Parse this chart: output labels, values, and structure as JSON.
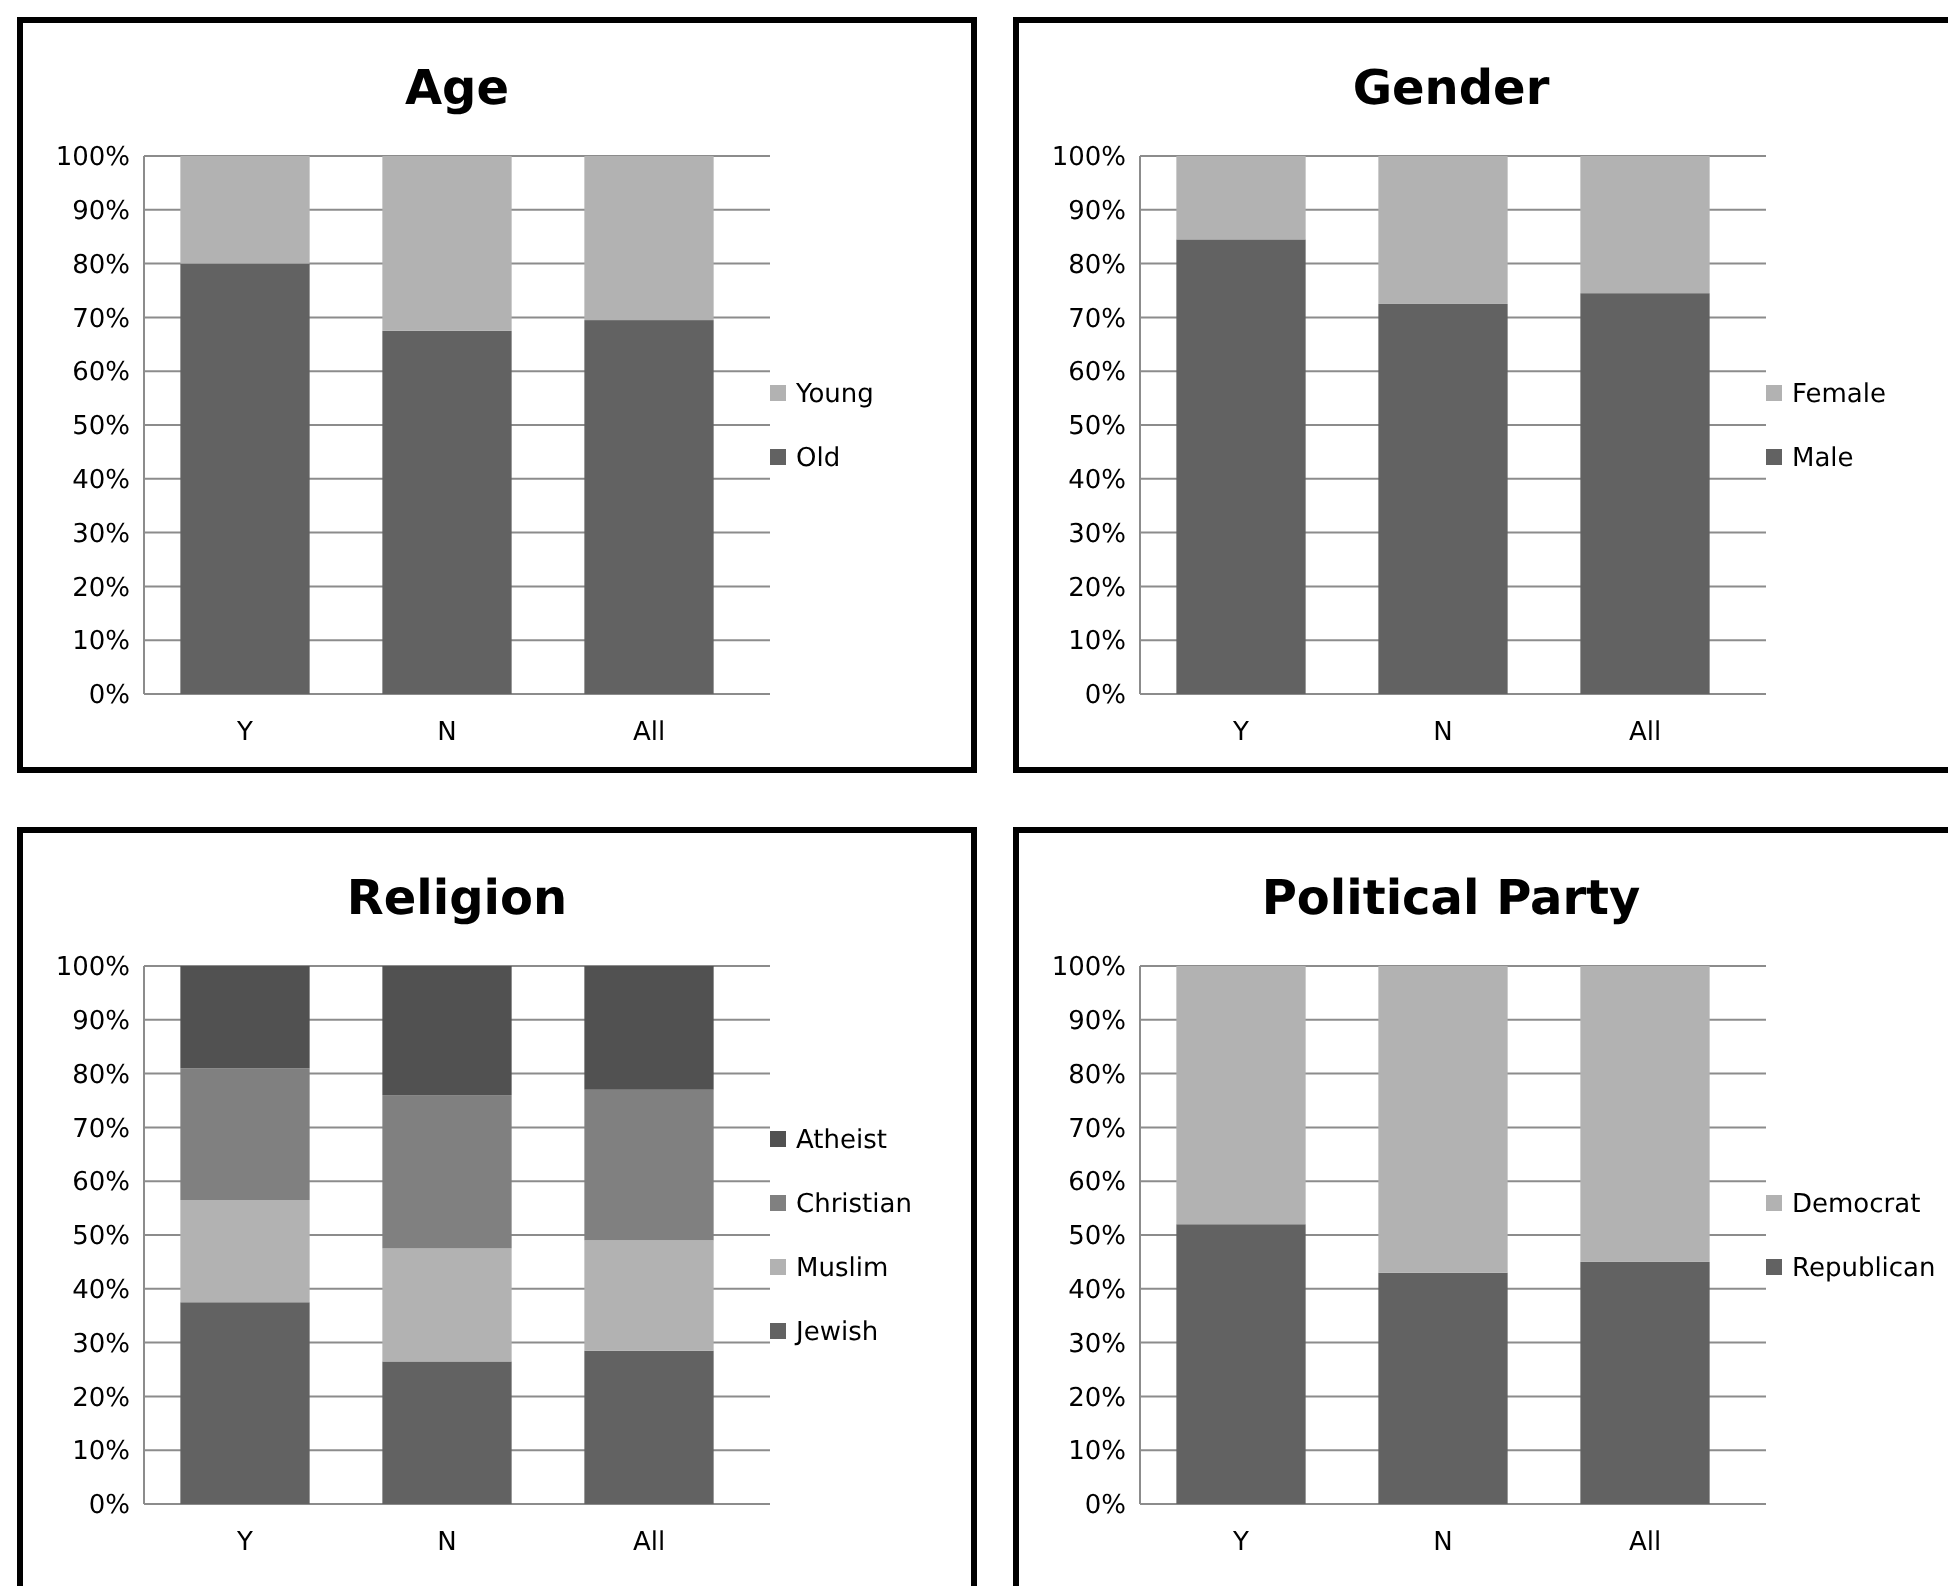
{
  "chart_data": [
    {
      "type": "bar",
      "title": "Age",
      "categories": [
        "Y",
        "N",
        "All"
      ],
      "stacked": true,
      "legend": "right",
      "grid": "y",
      "ylim": [
        0,
        100
      ],
      "yticks": [
        {
          "value": 0,
          "label": "0%"
        },
        {
          "value": 10,
          "label": "10%"
        },
        {
          "value": 20,
          "label": "20%"
        },
        {
          "value": 30,
          "label": "30%"
        },
        {
          "value": 40,
          "label": "40%"
        },
        {
          "value": 50,
          "label": "50%"
        },
        {
          "value": 60,
          "label": "60%"
        },
        {
          "value": 70,
          "label": "70%"
        },
        {
          "value": 80,
          "label": "80%"
        },
        {
          "value": 90,
          "label": "90%"
        },
        {
          "value": 100,
          "label": "100%"
        }
      ],
      "series": [
        {
          "name": "Old",
          "color": "#626262",
          "values": [
            80,
            67.5,
            69.5
          ]
        },
        {
          "name": "Young",
          "color": "#b2b2b2",
          "values": [
            20,
            32.5,
            30.5
          ]
        }
      ]
    },
    {
      "type": "bar",
      "title": "Gender",
      "categories": [
        "Y",
        "N",
        "All"
      ],
      "stacked": true,
      "legend": "right",
      "grid": "y",
      "ylim": [
        0,
        100
      ],
      "yticks": [
        {
          "value": 0,
          "label": "0%"
        },
        {
          "value": 10,
          "label": "10%"
        },
        {
          "value": 20,
          "label": "20%"
        },
        {
          "value": 30,
          "label": "30%"
        },
        {
          "value": 40,
          "label": "40%"
        },
        {
          "value": 50,
          "label": "50%"
        },
        {
          "value": 60,
          "label": "60%"
        },
        {
          "value": 70,
          "label": "70%"
        },
        {
          "value": 80,
          "label": "80%"
        },
        {
          "value": 90,
          "label": "90%"
        },
        {
          "value": 100,
          "label": "100%"
        }
      ],
      "series": [
        {
          "name": "Male",
          "color": "#626262",
          "values": [
            84.5,
            72.5,
            74.5
          ]
        },
        {
          "name": "Female",
          "color": "#b2b2b2",
          "values": [
            15.5,
            27.5,
            25.5
          ]
        }
      ]
    },
    {
      "type": "bar",
      "title": "Religion",
      "categories": [
        "Y",
        "N",
        "All"
      ],
      "stacked": true,
      "legend": "right",
      "grid": "y",
      "ylim": [
        0,
        100
      ],
      "yticks": [
        {
          "value": 0,
          "label": "0%"
        },
        {
          "value": 10,
          "label": "10%"
        },
        {
          "value": 20,
          "label": "20%"
        },
        {
          "value": 30,
          "label": "30%"
        },
        {
          "value": 40,
          "label": "40%"
        },
        {
          "value": 50,
          "label": "50%"
        },
        {
          "value": 60,
          "label": "60%"
        },
        {
          "value": 70,
          "label": "70%"
        },
        {
          "value": 80,
          "label": "80%"
        },
        {
          "value": 90,
          "label": "90%"
        },
        {
          "value": 100,
          "label": "100%"
        }
      ],
      "series": [
        {
          "name": "Jewish",
          "color": "#626262",
          "values": [
            37.5,
            26.5,
            28.5
          ]
        },
        {
          "name": "Muslim",
          "color": "#b2b2b2",
          "values": [
            19,
            21,
            20.5
          ]
        },
        {
          "name": "Christian",
          "color": "#808080",
          "values": [
            24.5,
            28.5,
            28
          ]
        },
        {
          "name": "Atheist",
          "color": "#515151",
          "values": [
            19,
            24,
            23
          ]
        }
      ]
    },
    {
      "type": "bar",
      "title": "Political Party",
      "categories": [
        "Y",
        "N",
        "All"
      ],
      "stacked": true,
      "legend": "right",
      "grid": "y",
      "ylim": [
        0,
        100
      ],
      "yticks": [
        {
          "value": 0,
          "label": "0%"
        },
        {
          "value": 10,
          "label": "10%"
        },
        {
          "value": 20,
          "label": "20%"
        },
        {
          "value": 30,
          "label": "30%"
        },
        {
          "value": 40,
          "label": "40%"
        },
        {
          "value": 50,
          "label": "50%"
        },
        {
          "value": 60,
          "label": "60%"
        },
        {
          "value": 70,
          "label": "70%"
        },
        {
          "value": 80,
          "label": "80%"
        },
        {
          "value": 90,
          "label": "90%"
        },
        {
          "value": 100,
          "label": "100%"
        }
      ],
      "series": [
        {
          "name": "Republican",
          "color": "#626262",
          "values": [
            52,
            43,
            45
          ]
        },
        {
          "name": "Democrat",
          "color": "#b2b2b2",
          "values": [
            48,
            57,
            55
          ]
        }
      ]
    }
  ]
}
